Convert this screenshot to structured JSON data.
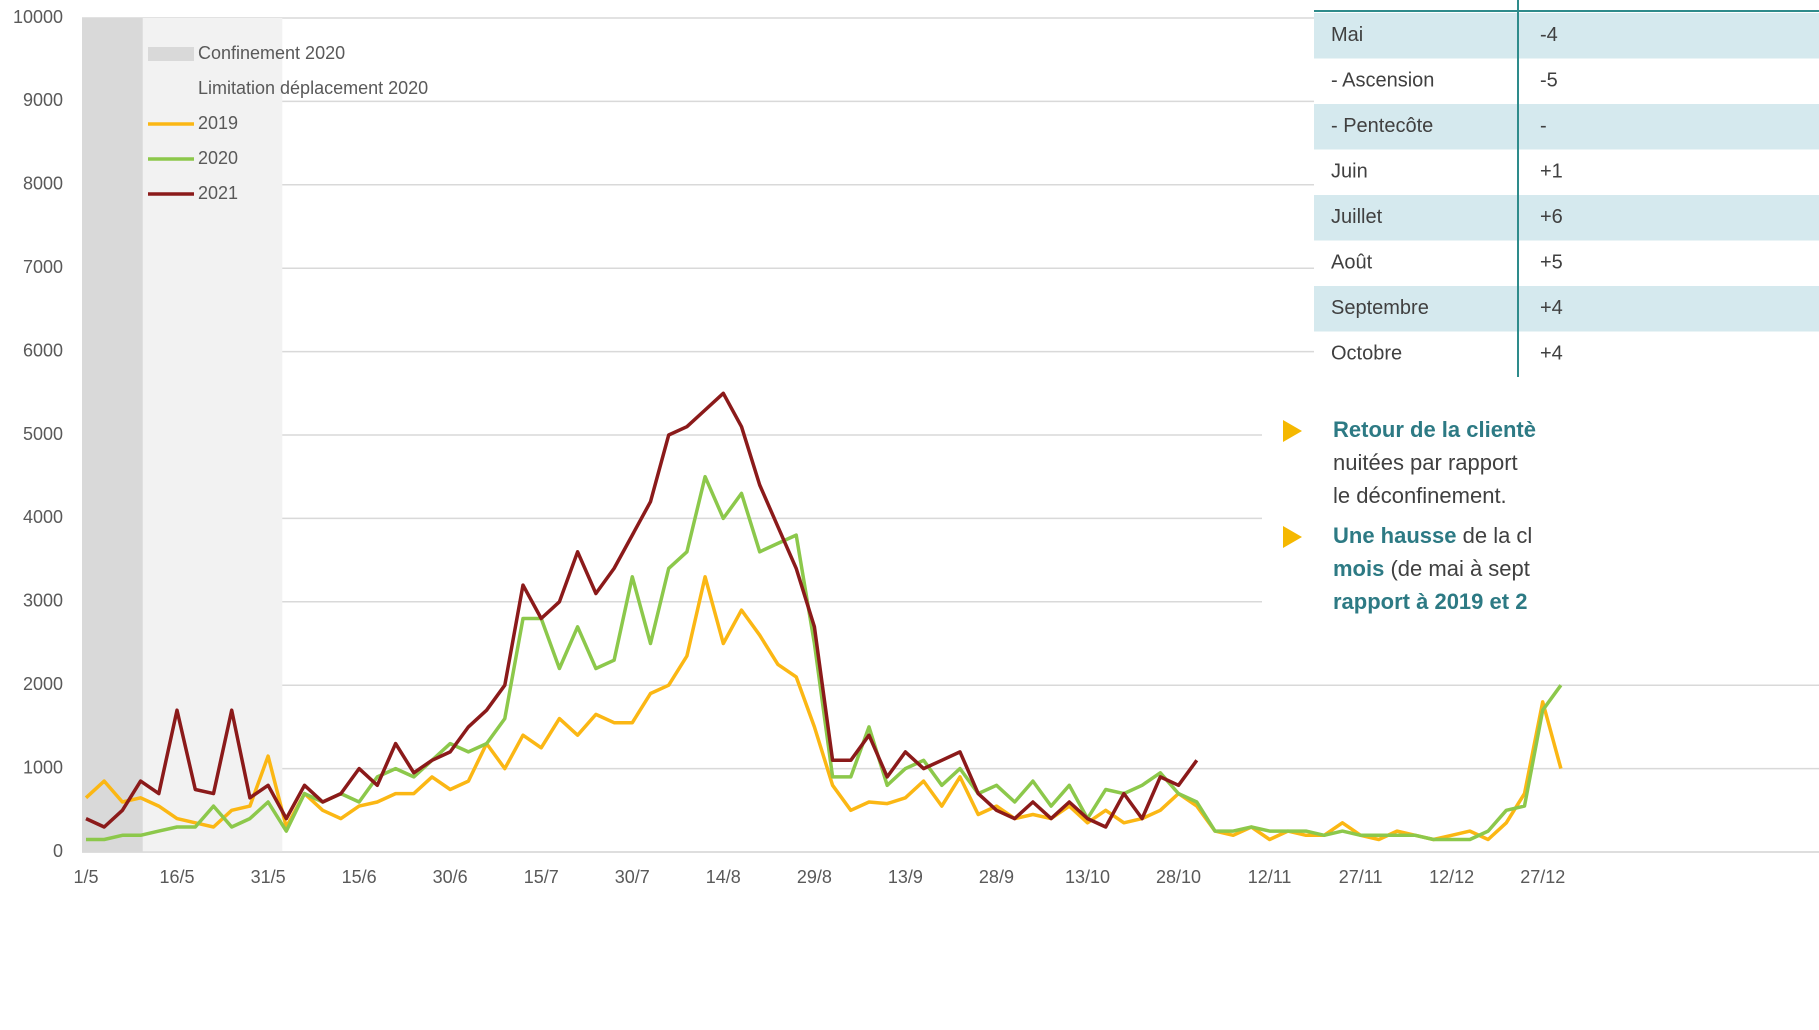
{
  "chart_data": {
    "type": "line",
    "x": [
      0,
      3,
      6,
      9,
      12,
      15,
      18,
      21,
      24,
      27,
      30,
      33,
      36,
      39,
      42,
      45,
      48,
      51,
      54,
      57,
      60,
      63,
      66,
      69,
      72,
      75,
      78,
      81,
      84,
      87,
      90,
      93,
      96,
      99,
      102,
      105,
      108,
      111,
      114,
      117,
      120,
      123,
      126,
      129,
      132,
      135,
      138,
      141,
      144,
      147,
      150,
      153,
      156,
      159,
      162,
      165,
      168,
      171,
      174,
      177,
      180,
      183,
      186,
      189,
      192,
      195,
      198,
      201,
      204,
      207,
      210,
      213,
      216,
      219,
      222,
      225,
      228,
      231,
      234,
      237,
      240,
      243
    ],
    "xlim": [
      0,
      244
    ],
    "xticks": [
      {
        "value": 0,
        "label": "1/5"
      },
      {
        "value": 15,
        "label": "16/5"
      },
      {
        "value": 30,
        "label": "31/5"
      },
      {
        "value": 45,
        "label": "15/6"
      },
      {
        "value": 60,
        "label": "30/6"
      },
      {
        "value": 75,
        "label": "15/7"
      },
      {
        "value": 90,
        "label": "30/7"
      },
      {
        "value": 105,
        "label": "14/8"
      },
      {
        "value": 120,
        "label": "29/8"
      },
      {
        "value": 135,
        "label": "13/9"
      },
      {
        "value": 150,
        "label": "28/9"
      },
      {
        "value": 165,
        "label": "13/10"
      },
      {
        "value": 180,
        "label": "28/10"
      },
      {
        "value": 195,
        "label": "12/11"
      },
      {
        "value": 210,
        "label": "27/11"
      },
      {
        "value": 225,
        "label": "12/12"
      },
      {
        "value": 240,
        "label": "27/12"
      }
    ],
    "ylim": [
      0,
      10000
    ],
    "yticks": [
      0,
      1000,
      2000,
      3000,
      4000,
      5000,
      6000,
      7000,
      8000,
      9000,
      10000
    ],
    "grid": true,
    "shaded": [
      {
        "name": "Confinement 2020",
        "range": [
          0,
          10
        ],
        "color": "#d9d9d9"
      },
      {
        "name": "Limitation déplacement 2020",
        "range": [
          10,
          33
        ],
        "color": "#f2f2f2"
      }
    ],
    "series": [
      {
        "name": "2019",
        "color": "#fbb714",
        "values": [
          650,
          850,
          600,
          650,
          550,
          400,
          350,
          300,
          500,
          550,
          1150,
          300,
          700,
          500,
          400,
          550,
          600,
          700,
          700,
          900,
          750,
          850,
          1300,
          1000,
          1400,
          1250,
          1600,
          1400,
          1650,
          1550,
          1550,
          1900,
          2000,
          2350,
          3300,
          2500,
          2900,
          2600,
          2250,
          2100,
          1500,
          800,
          500,
          600,
          580,
          650,
          850,
          550,
          900,
          450,
          550,
          400,
          450,
          400,
          550,
          350,
          500,
          350,
          400,
          500,
          700,
          550,
          250,
          200,
          300,
          150,
          250,
          200,
          200,
          350,
          200,
          150,
          250,
          200,
          150,
          200,
          250,
          150,
          350,
          700,
          1800,
          1000
        ]
      },
      {
        "name": "2020",
        "color": "#8cc84b",
        "values": [
          150,
          150,
          200,
          200,
          250,
          300,
          300,
          550,
          300,
          400,
          600,
          250,
          700,
          600,
          700,
          600,
          900,
          1000,
          900,
          1100,
          1300,
          1200,
          1300,
          1600,
          2800,
          2800,
          2200,
          2700,
          2200,
          2300,
          3300,
          2500,
          3400,
          3600,
          4500,
          4000,
          4300,
          3600,
          3700,
          3800,
          2500,
          900,
          900,
          1500,
          800,
          1000,
          1100,
          800,
          1000,
          700,
          800,
          600,
          850,
          550,
          800,
          400,
          750,
          700,
          800,
          950,
          700,
          600,
          250,
          250,
          300,
          250,
          250,
          250,
          200,
          250,
          200,
          200,
          200,
          200,
          150,
          150,
          150,
          250,
          500,
          550,
          1700,
          2000
        ]
      },
      {
        "name": "2021",
        "color": "#8b1a1a",
        "values": [
          400,
          300,
          500,
          850,
          700,
          1700,
          750,
          700,
          1700,
          650,
          800,
          400,
          800,
          600,
          700,
          1000,
          800,
          1300,
          950,
          1100,
          1200,
          1500,
          1700,
          2000,
          3200,
          2800,
          3000,
          3600,
          3100,
          3400,
          3800,
          4200,
          5000,
          5100,
          5300,
          5500,
          5100,
          4400,
          3900,
          3400,
          2700,
          1100,
          1100,
          1400,
          900,
          1200,
          1000,
          1100,
          1200,
          700,
          500,
          400,
          600,
          400,
          600,
          400,
          300,
          700,
          400,
          900,
          800,
          1100,
          null,
          null,
          null,
          null,
          null,
          null,
          null,
          null,
          null,
          null,
          null,
          null,
          null,
          null,
          null,
          null,
          null,
          null,
          null,
          null
        ]
      }
    ]
  },
  "table": {
    "rows": [
      [
        "Mai",
        "-4"
      ],
      [
        " - Ascension",
        "-5"
      ],
      [
        " - Pentecôte",
        "-"
      ],
      [
        "Juin",
        "+1"
      ],
      [
        "Juillet",
        "+6"
      ],
      [
        "Août",
        "+5"
      ],
      [
        "Septembre",
        "+4"
      ],
      [
        "Octobre",
        "+4"
      ]
    ]
  },
  "notes": [
    [
      {
        "text": "Retour de la clientè",
        "bold": true
      }
    ],
    [
      {
        "text": "nuitées par rapport",
        "bold": false
      }
    ],
    [
      {
        "text": "le déconfinement.",
        "bold": false
      }
    ],
    [
      {
        "text": "Une hausse",
        "bold": true
      },
      {
        "text": " de la cl",
        "bold": false
      }
    ],
    [
      {
        "text": "mois",
        "bold": true
      },
      {
        "text": " (de mai à sept",
        "bold": false
      }
    ],
    [
      {
        "text": "rapport à 2019 et 2",
        "bold": true
      }
    ]
  ]
}
